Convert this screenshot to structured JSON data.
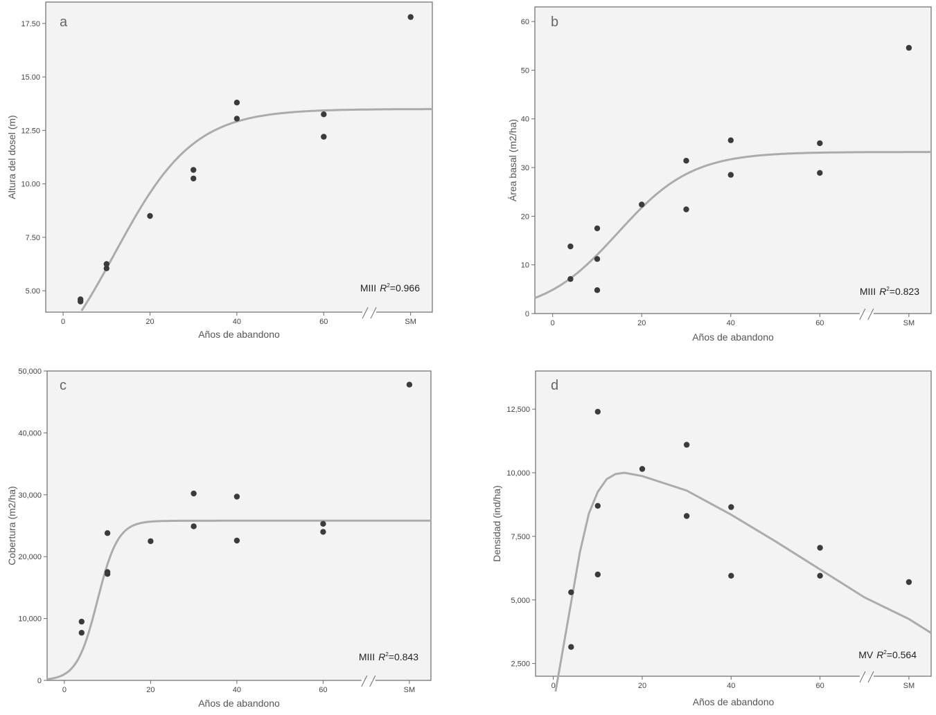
{
  "chart_data": [
    {
      "type": "scatter",
      "panel": "a",
      "xlabel": "Años de abandono",
      "ylabel": "Altura del dosel (m)",
      "x_ticks": [
        "0",
        "20",
        "40",
        "60",
        "SM"
      ],
      "y_ticks": [
        "5.00",
        "7.50",
        "10.00",
        "12.50",
        "15.00",
        "17.50"
      ],
      "xlim": [
        -4,
        85
      ],
      "ylim": [
        4,
        18.5
      ],
      "sm_x": 80,
      "points": [
        [
          4,
          4.6
        ],
        [
          4,
          4.5
        ],
        [
          10,
          6.25
        ],
        [
          10,
          6.05
        ],
        [
          20,
          8.5
        ],
        [
          30,
          10.65
        ],
        [
          30,
          10.25
        ],
        [
          40,
          13.8
        ],
        [
          40,
          13.05
        ],
        [
          60,
          13.25
        ],
        [
          60,
          12.2
        ],
        [
          80,
          17.8
        ]
      ],
      "fit": {
        "model": "logistic",
        "a": 13.5,
        "b": 3.7,
        "c": 0.11
      },
      "annotation": {
        "model": "MIII",
        "r2_label": "R",
        "r2_sup": "2",
        "r2_value": "=0.966"
      }
    },
    {
      "type": "scatter",
      "panel": "b",
      "xlabel": "Años de abandono",
      "ylabel": "Área basal (m2/ha)",
      "x_ticks": [
        "0",
        "20",
        "40",
        "60",
        "SM"
      ],
      "y_ticks": [
        "0",
        "10",
        "20",
        "30",
        "40",
        "50",
        "60"
      ],
      "xlim": [
        -4,
        85
      ],
      "ylim": [
        0,
        63
      ],
      "sm_x": 80,
      "points": [
        [
          4,
          13.8
        ],
        [
          4,
          7.1
        ],
        [
          10,
          17.5
        ],
        [
          10,
          11.2
        ],
        [
          10,
          4.8
        ],
        [
          20,
          22.4
        ],
        [
          30,
          31.4
        ],
        [
          30,
          21.4
        ],
        [
          40,
          35.6
        ],
        [
          40,
          28.5
        ],
        [
          60,
          35
        ],
        [
          60,
          28.9
        ],
        [
          80,
          54.6
        ]
      ],
      "fit": {
        "model": "logistic",
        "a": 33.2,
        "b": 5.8,
        "c": 0.12
      },
      "annotation": {
        "model": "MIII",
        "r2_label": "R",
        "r2_sup": "2",
        "r2_value": "=0.823"
      }
    },
    {
      "type": "scatter",
      "panel": "c",
      "xlabel": "Años de abandono",
      "ylabel": "Cobertura (m2/ha)",
      "x_ticks": [
        "0",
        "20",
        "40",
        "60",
        "SM"
      ],
      "y_ticks": [
        "0",
        "10,000",
        "20,000",
        "30,000",
        "40,000",
        "50,000"
      ],
      "xlim": [
        -4,
        85
      ],
      "ylim": [
        0,
        50000
      ],
      "sm_x": 80,
      "points": [
        [
          4,
          9500
        ],
        [
          4,
          7700
        ],
        [
          10,
          23800
        ],
        [
          10,
          17500
        ],
        [
          10,
          17200
        ],
        [
          20,
          22500
        ],
        [
          30,
          30200
        ],
        [
          30,
          24900
        ],
        [
          40,
          29700
        ],
        [
          40,
          22600
        ],
        [
          60,
          25300
        ],
        [
          60,
          24000
        ],
        [
          80,
          47800
        ]
      ],
      "fit": {
        "model": "logistic",
        "a": 25800,
        "b": 25,
        "c": 0.42
      },
      "annotation": {
        "model": "MIII",
        "r2_label": "R",
        "r2_sup": "2",
        "r2_value": "=0.843"
      }
    },
    {
      "type": "scatter",
      "panel": "d",
      "xlabel": "Años de abandono",
      "ylabel": "Densidad (ind/ha)",
      "x_ticks": [
        "0",
        "20",
        "40",
        "60",
        "SM"
      ],
      "y_ticks": [
        "2,500",
        "5,000",
        "7,500",
        "10,000",
        "12,500"
      ],
      "xlim": [
        -4,
        85
      ],
      "ylim": [
        2000,
        14000
      ],
      "sm_x": 80,
      "points": [
        [
          4,
          5300
        ],
        [
          4,
          3150
        ],
        [
          10,
          12400
        ],
        [
          10,
          8700
        ],
        [
          10,
          6000
        ],
        [
          20,
          10150
        ],
        [
          30,
          11100
        ],
        [
          30,
          8300
        ],
        [
          40,
          8650
        ],
        [
          40,
          5950
        ],
        [
          60,
          7050
        ],
        [
          60,
          5950
        ],
        [
          80,
          5700
        ]
      ],
      "fit": {
        "model": "peaked",
        "segments": [
          [
            0.5,
            1400
          ],
          [
            3,
            3900
          ],
          [
            6,
            6900
          ],
          [
            8,
            8400
          ],
          [
            10,
            9250
          ],
          [
            12,
            9750
          ],
          [
            14,
            9950
          ],
          [
            16,
            10000
          ],
          [
            20,
            9870
          ],
          [
            30,
            9300
          ],
          [
            40,
            8350
          ],
          [
            50,
            7300
          ],
          [
            60,
            6200
          ],
          [
            70,
            5100
          ],
          [
            80,
            4250
          ],
          [
            85,
            3700
          ]
        ]
      },
      "annotation": {
        "model": "MV",
        "r2_label": "R",
        "r2_sup": "2",
        "r2_value": "=0.564"
      }
    }
  ]
}
